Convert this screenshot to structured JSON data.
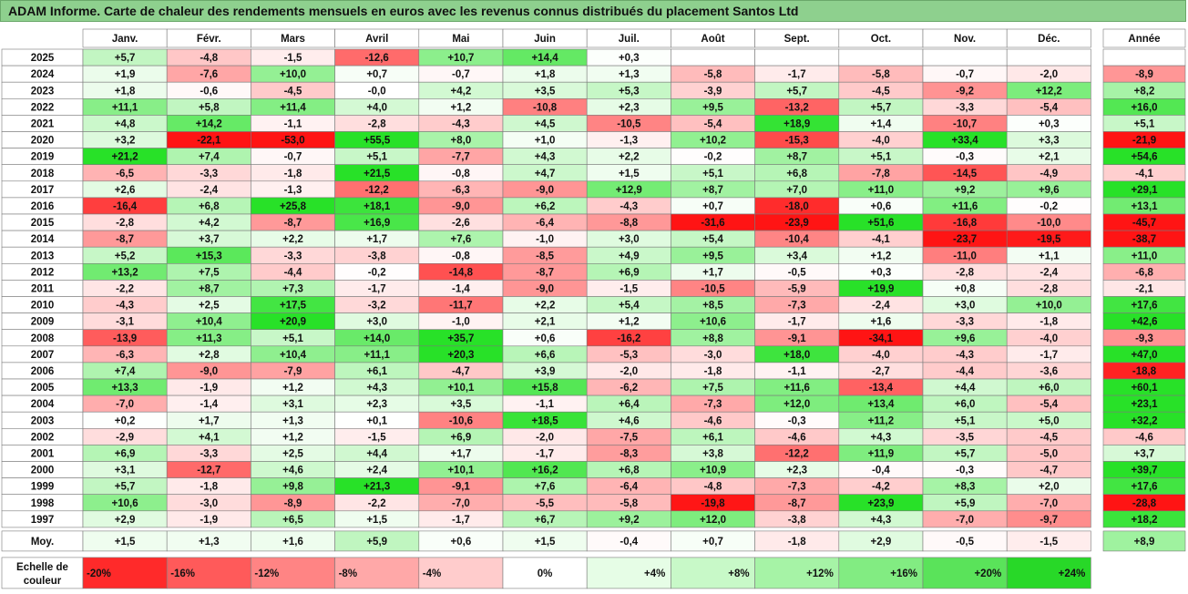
{
  "title": "ADAM Informe. Carte de chaleur des rendements mensuels en euros avec les revenus connus distribués du placement Santos Ltd",
  "chart_data": {
    "type": "heatmap",
    "title": "ADAM Informe. Carte de chaleur des rendements mensuels en euros avec les revenus connus distribués du placement Santos Ltd",
    "columns": [
      "Janv.",
      "Févr.",
      "Mars",
      "Avril",
      "Mai",
      "Juin",
      "Juil.",
      "Août",
      "Sept.",
      "Oct.",
      "Nov.",
      "Déc."
    ],
    "year_header": "Année",
    "rows": [
      {
        "label": "2025",
        "values": [
          "+5,7",
          "-4,8",
          "-1,5",
          "-12,6",
          "+10,7",
          "+14,4",
          "+0,3",
          "",
          "",
          "",
          "",
          ""
        ],
        "year": ""
      },
      {
        "label": "2024",
        "values": [
          "+1,9",
          "-7,6",
          "+10,0",
          "+0,7",
          "-0,7",
          "+1,8",
          "+1,3",
          "-5,8",
          "-1,7",
          "-5,8",
          "-0,7",
          "-2,0"
        ],
        "year": "-8,9"
      },
      {
        "label": "2023",
        "values": [
          "+1,8",
          "-0,6",
          "-4,5",
          "-0,0",
          "+4,2",
          "+3,5",
          "+5,3",
          "-3,9",
          "+5,7",
          "-4,5",
          "-9,2",
          "+12,2"
        ],
        "year": "+8,2"
      },
      {
        "label": "2022",
        "values": [
          "+11,1",
          "+5,8",
          "+11,4",
          "+4,0",
          "+1,2",
          "-10,8",
          "+2,3",
          "+9,5",
          "-13,2",
          "+5,7",
          "-3,3",
          "-5,4"
        ],
        "year": "+16,0"
      },
      {
        "label": "2021",
        "values": [
          "+4,8",
          "+14,2",
          "-1,1",
          "-2,8",
          "-4,3",
          "+4,5",
          "-10,5",
          "-5,4",
          "+18,9",
          "+1,4",
          "-10,7",
          "+0,3"
        ],
        "year": "+5,1"
      },
      {
        "label": "2020",
        "values": [
          "+3,2",
          "-22,1",
          "-53,0",
          "+55,5",
          "+8,0",
          "+1,0",
          "-1,3",
          "+10,2",
          "-15,3",
          "-4,0",
          "+33,4",
          "+3,3"
        ],
        "year": "-21,9"
      },
      {
        "label": "2019",
        "values": [
          "+21,2",
          "+7,4",
          "-0,7",
          "+5,1",
          "-7,7",
          "+4,3",
          "+2,2",
          "-0,2",
          "+8,7",
          "+5,1",
          "-0,3",
          "+2,1"
        ],
        "year": "+54,6"
      },
      {
        "label": "2018",
        "values": [
          "-6,5",
          "-3,3",
          "-1,8",
          "+21,5",
          "-0,8",
          "+4,7",
          "+1,5",
          "+5,1",
          "+6,8",
          "-7,8",
          "-14,5",
          "-4,9"
        ],
        "year": "-4,1"
      },
      {
        "label": "2017",
        "values": [
          "+2,6",
          "-2,4",
          "-1,3",
          "-12,2",
          "-6,3",
          "-9,0",
          "+12,9",
          "+8,7",
          "+7,0",
          "+11,0",
          "+9,2",
          "+9,6"
        ],
        "year": "+29,1"
      },
      {
        "label": "2016",
        "values": [
          "-16,4",
          "+6,8",
          "+25,8",
          "+18,1",
          "-9,0",
          "+6,2",
          "-4,3",
          "+0,7",
          "-18,0",
          "+0,6",
          "+11,6",
          "-0,2"
        ],
        "year": "+13,1"
      },
      {
        "label": "2015",
        "values": [
          "-2,8",
          "+4,2",
          "-8,7",
          "+16,9",
          "-2,6",
          "-6,4",
          "-8,8",
          "-31,6",
          "-23,9",
          "+51,6",
          "-16,8",
          "-10,0"
        ],
        "year": "-45,7"
      },
      {
        "label": "2014",
        "values": [
          "-8,7",
          "+3,7",
          "+2,2",
          "+1,7",
          "+7,6",
          "-1,0",
          "+3,0",
          "+5,4",
          "-10,4",
          "-4,1",
          "-23,7",
          "-19,5"
        ],
        "year": "-38,7"
      },
      {
        "label": "2013",
        "values": [
          "+5,2",
          "+15,3",
          "-3,3",
          "-3,8",
          "-0,8",
          "-8,5",
          "+4,9",
          "+9,5",
          "+3,4",
          "+1,2",
          "-11,0",
          "+1,1"
        ],
        "year": "+11,0"
      },
      {
        "label": "2012",
        "values": [
          "+13,2",
          "+7,5",
          "-4,4",
          "-0,2",
          "-14,8",
          "-8,7",
          "+6,9",
          "+1,7",
          "-0,5",
          "+0,3",
          "-2,8",
          "-2,4"
        ],
        "year": "-6,8"
      },
      {
        "label": "2011",
        "values": [
          "-2,2",
          "+8,7",
          "+7,3",
          "-1,7",
          "-1,4",
          "-9,0",
          "-1,5",
          "-10,5",
          "-5,9",
          "+19,9",
          "+0,8",
          "-2,8"
        ],
        "year": "-2,1"
      },
      {
        "label": "2010",
        "values": [
          "-4,3",
          "+2,5",
          "+17,5",
          "-3,2",
          "-11,7",
          "+2,2",
          "+5,4",
          "+8,5",
          "-7,3",
          "-2,4",
          "+3,0",
          "+10,0"
        ],
        "year": "+17,6"
      },
      {
        "label": "2009",
        "values": [
          "-3,1",
          "+10,4",
          "+20,9",
          "+3,0",
          "-1,0",
          "+2,1",
          "+1,2",
          "+10,6",
          "-1,7",
          "+1,6",
          "-3,3",
          "-1,8"
        ],
        "year": "+42,6"
      },
      {
        "label": "2008",
        "values": [
          "-13,9",
          "+11,3",
          "+5,1",
          "+14,0",
          "+35,7",
          "+0,6",
          "-16,2",
          "+8,8",
          "-9,1",
          "-34,1",
          "+9,6",
          "-4,0"
        ],
        "year": "-9,3"
      },
      {
        "label": "2007",
        "values": [
          "-6,3",
          "+2,8",
          "+10,4",
          "+11,1",
          "+20,3",
          "+6,6",
          "-5,3",
          "-3,0",
          "+18,0",
          "-4,0",
          "-4,3",
          "-1,7"
        ],
        "year": "+47,0"
      },
      {
        "label": "2006",
        "values": [
          "+7,4",
          "-9,0",
          "-7,9",
          "+6,1",
          "-4,7",
          "+3,9",
          "-2,0",
          "-1,8",
          "-1,1",
          "-2,7",
          "-4,4",
          "-3,6"
        ],
        "year": "-18,8"
      },
      {
        "label": "2005",
        "values": [
          "+13,3",
          "-1,9",
          "+1,2",
          "+4,3",
          "+10,1",
          "+15,8",
          "-6,2",
          "+7,5",
          "+11,6",
          "-13,4",
          "+4,4",
          "+6,0"
        ],
        "year": "+60,1"
      },
      {
        "label": "2004",
        "values": [
          "-7,0",
          "-1,4",
          "+3,1",
          "+2,3",
          "+3,5",
          "-1,1",
          "+6,4",
          "-7,3",
          "+12,0",
          "+13,4",
          "+6,0",
          "-5,4"
        ],
        "year": "+23,1"
      },
      {
        "label": "2003",
        "values": [
          "+0,2",
          "+1,7",
          "+1,3",
          "+0,1",
          "-10,6",
          "+18,5",
          "+4,6",
          "-4,6",
          "-0,3",
          "+11,2",
          "+5,1",
          "+5,0"
        ],
        "year": "+32,2"
      },
      {
        "label": "2002",
        "values": [
          "-2,9",
          "+4,1",
          "+1,2",
          "-1,5",
          "+6,9",
          "-2,0",
          "-7,5",
          "+6,1",
          "-4,6",
          "+4,3",
          "-3,5",
          "-4,5"
        ],
        "year": "-4,6"
      },
      {
        "label": "2001",
        "values": [
          "+6,9",
          "-3,3",
          "+2,5",
          "+4,4",
          "+1,7",
          "-1,7",
          "-8,3",
          "+3,8",
          "-12,2",
          "+11,9",
          "+5,7",
          "-5,0"
        ],
        "year": "+3,7"
      },
      {
        "label": "2000",
        "values": [
          "+3,1",
          "-12,7",
          "+4,6",
          "+2,4",
          "+10,1",
          "+16,2",
          "+6,8",
          "+10,9",
          "+2,3",
          "-0,4",
          "-0,3",
          "-4,7"
        ],
        "year": "+39,7"
      },
      {
        "label": "1999",
        "values": [
          "+5,7",
          "-1,8",
          "+9,8",
          "+21,3",
          "-9,1",
          "+7,6",
          "-6,4",
          "-4,8",
          "-7,3",
          "-4,2",
          "+8,3",
          "+2,0"
        ],
        "year": "+17,6"
      },
      {
        "label": "1998",
        "values": [
          "+10,6",
          "-3,0",
          "-8,9",
          "-2,2",
          "-7,0",
          "-5,5",
          "-5,8",
          "-19,8",
          "-8,7",
          "+23,9",
          "+5,9",
          "-7,0"
        ],
        "year": "-28,8"
      },
      {
        "label": "1997",
        "values": [
          "+2,9",
          "-1,9",
          "+6,5",
          "+1,5",
          "-1,7",
          "+6,7",
          "+9,2",
          "+12,0",
          "-3,8",
          "+4,3",
          "-7,0",
          "-9,7"
        ],
        "year": "+18,2"
      }
    ],
    "average": {
      "label": "Moy.",
      "values": [
        "+1,5",
        "+1,3",
        "+1,6",
        "+5,9",
        "+0,6",
        "+1,5",
        "-0,4",
        "+0,7",
        "-1,8",
        "+2,9",
        "-0,5",
        "-1,5"
      ],
      "year": "+8,9"
    },
    "scale": {
      "label_line1": "Echelle de",
      "label_line2": "couleur",
      "steps": [
        "-20%",
        "-16%",
        "-12%",
        "-8%",
        "-4%",
        "0%",
        "+4%",
        "+8%",
        "+12%",
        "+16%",
        "+20%",
        "+24%"
      ],
      "step_values": [
        -20,
        -16,
        -12,
        -8,
        -4,
        0,
        4,
        8,
        12,
        16,
        20,
        24
      ],
      "colors": [
        "#ff2a2a",
        "#ff5a5a",
        "#ff8484",
        "#ffa8a8",
        "#ffcccc",
        "#ffffff",
        "#e6fde6",
        "#c8f9c8",
        "#a6f3a6",
        "#82ec82",
        "#5ae35a",
        "#28d828"
      ]
    }
  }
}
